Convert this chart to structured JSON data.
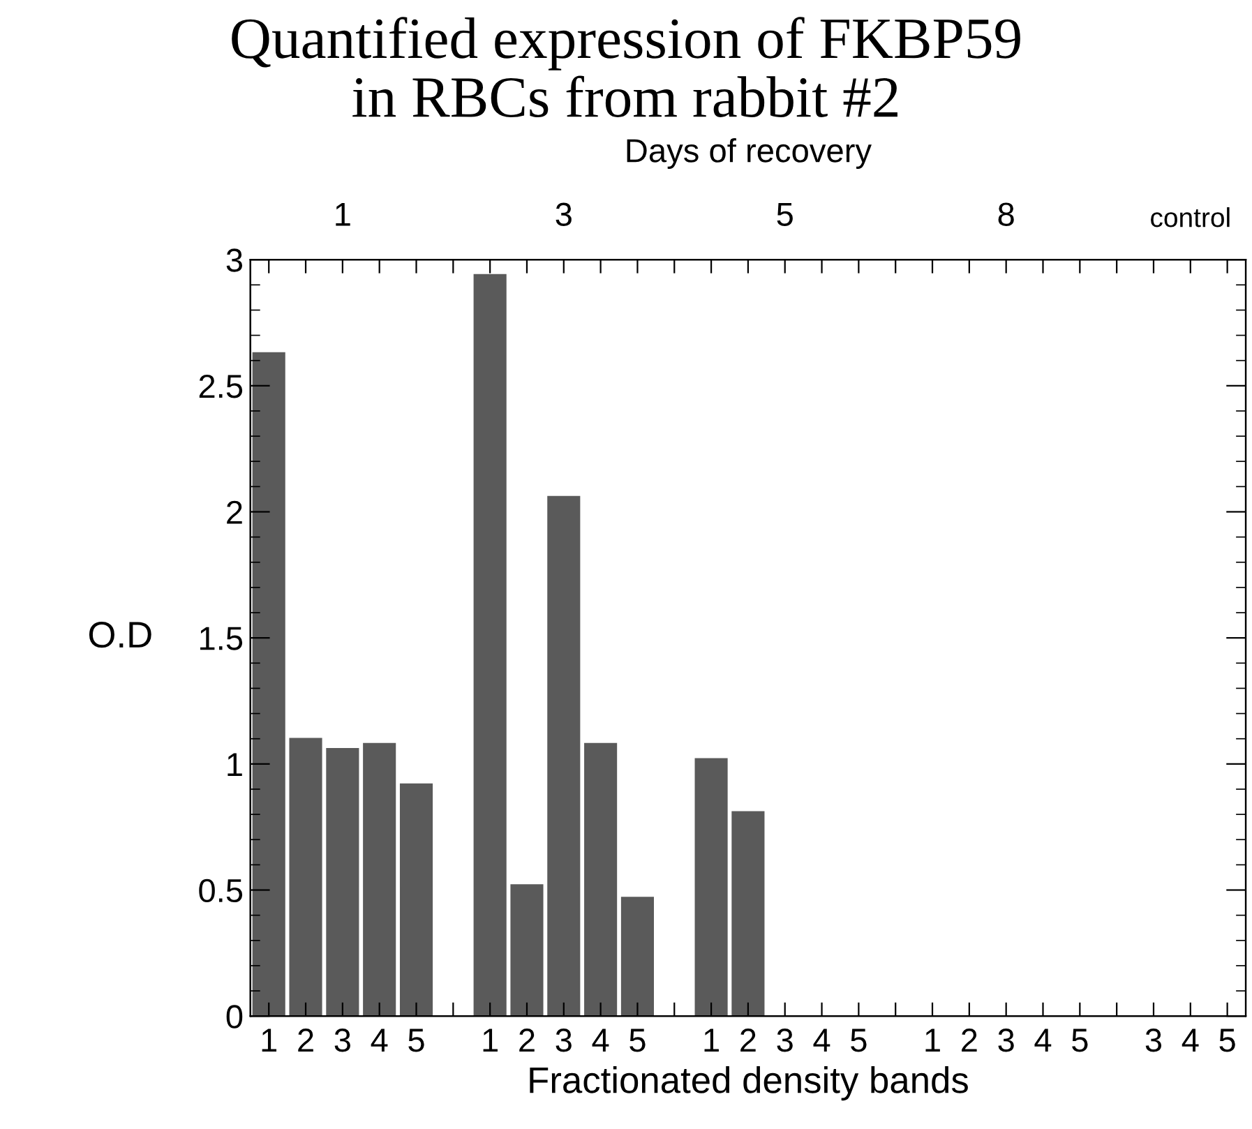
{
  "chart_data": {
    "type": "bar",
    "title": "Quantified expression of FKBP59\nin RBCs from rabbit #2",
    "xlabel": "Fractionated density bands",
    "ylabel": "O.D",
    "annotations": [
      "Days of recovery",
      "1",
      "3",
      "5",
      "8",
      "control"
    ],
    "categories": [
      "1",
      "2",
      "3",
      "4",
      "5",
      null,
      "1",
      "2",
      "3",
      "4",
      "5",
      null,
      "1",
      "2",
      "3",
      "4",
      "5",
      null,
      "1",
      "2",
      "3",
      "4",
      "5",
      null,
      "3",
      "4",
      "5"
    ],
    "values": [
      2.63,
      1.1,
      1.06,
      1.08,
      0.92,
      null,
      2.94,
      0.52,
      2.06,
      1.08,
      0.47,
      null,
      1.02,
      0.81,
      0,
      0,
      0,
      null,
      0,
      0,
      0,
      0,
      0,
      null,
      0,
      0,
      0
    ],
    "color": "#5a5a5a",
    "ylim": [
      0,
      3
    ],
    "yticks": [
      0,
      0.5,
      1,
      1.5,
      2,
      2.5,
      3
    ],
    "grid": false,
    "legend": false
  }
}
